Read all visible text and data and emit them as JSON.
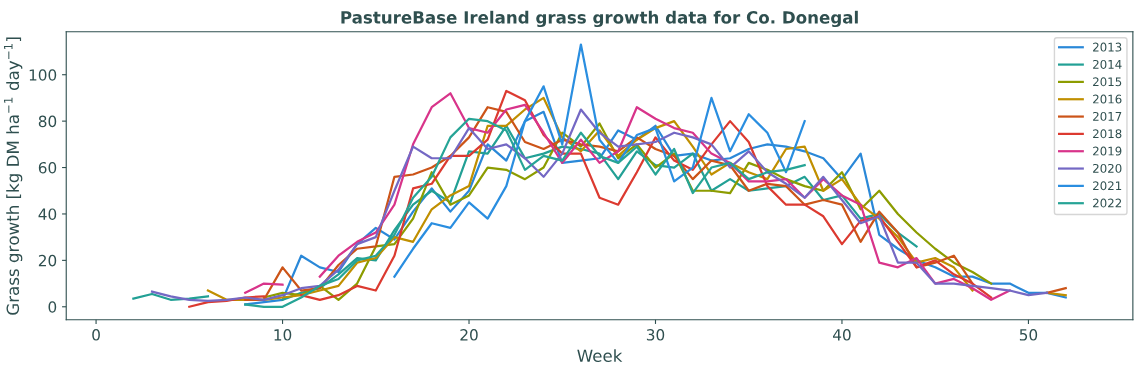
{
  "chart_data": {
    "type": "line",
    "title": "PastureBase Ireland grass growth data for Co. Donegal",
    "xlabel": "Week",
    "ylabel": "Grass growth [kg DM ha$^{−1}$ day$^{−1}$]",
    "xlim": [
      -1.6,
      55.6
    ],
    "ylim": [
      -5.6,
      118.5
    ],
    "xticks": [
      0,
      10,
      20,
      30,
      40,
      50
    ],
    "yticks": [
      0,
      20,
      40,
      60,
      80,
      100
    ],
    "grid": false,
    "legend": "top right",
    "line_style": "solid",
    "marker": "none",
    "series": [
      {
        "name": "2013",
        "color": "#2a88d8",
        "x": [
          8,
          9,
          10,
          11,
          12,
          13,
          14,
          15,
          16,
          17,
          18,
          19,
          20,
          21,
          22,
          23,
          24,
          25,
          26,
          27,
          28,
          29,
          30,
          31,
          32,
          33,
          34,
          35,
          36,
          37,
          38,
          39,
          40,
          41,
          42,
          43,
          44,
          45,
          46,
          47,
          48,
          49,
          50,
          51,
          52
        ],
        "values": [
          1,
          2,
          3,
          22,
          17,
          15,
          27,
          34,
          29,
          41,
          51,
          41,
          50,
          70,
          63,
          80,
          84,
          62,
          63,
          64,
          76,
          72,
          78,
          65,
          66,
          63,
          64,
          68,
          70,
          69,
          67,
          64,
          55,
          66,
          31,
          25,
          20,
          17,
          13,
          13,
          10,
          10,
          6,
          6,
          4
        ]
      },
      {
        "name": "2014",
        "color": "#22a095",
        "x": [
          2,
          3,
          4,
          5,
          6,
          7,
          8,
          9,
          10,
          11,
          12,
          13,
          14,
          15,
          16,
          17,
          18,
          19,
          20,
          21,
          22,
          23,
          24,
          25,
          26,
          27,
          28,
          29,
          30,
          31,
          32,
          33,
          34,
          35,
          36,
          37,
          38,
          39,
          40,
          41,
          42,
          43,
          44
        ],
        "values": [
          3.5,
          5.5,
          3,
          3.5,
          4.5,
          null,
          null,
          null,
          3,
          6,
          8,
          14,
          21,
          20,
          33,
          44,
          50,
          45,
          67,
          66,
          78,
          64,
          66,
          69,
          68,
          66,
          55,
          67,
          61,
          60,
          66,
          50,
          55,
          50,
          51,
          52,
          56,
          46,
          48,
          38,
          40,
          32,
          26
        ]
      },
      {
        "name": "2015",
        "color": "#8c9c00",
        "x": [
          9,
          10,
          11,
          12,
          13,
          14,
          15,
          16,
          17,
          18,
          19,
          20,
          21,
          22,
          23,
          24,
          25,
          26,
          27,
          28,
          29,
          30,
          31,
          32,
          33,
          34,
          35,
          36,
          37,
          38,
          39,
          40,
          41,
          42,
          43,
          44,
          45,
          46,
          47,
          48
        ],
        "values": [
          4,
          6,
          5,
          9,
          3,
          10,
          26,
          27,
          38,
          58,
          44,
          48,
          60,
          59,
          55,
          60,
          75,
          69,
          79,
          64,
          70,
          60,
          66,
          50,
          50,
          49,
          62,
          59,
          55,
          52,
          50,
          58,
          42,
          50,
          40,
          32,
          25,
          19,
          15,
          10
        ]
      },
      {
        "name": "2016",
        "color": "#c08f00",
        "x": [
          6,
          7,
          8,
          9,
          10,
          11,
          12,
          13,
          14,
          15,
          16,
          17,
          18,
          19,
          20,
          21,
          22,
          23,
          24,
          25,
          26,
          27,
          28,
          29,
          30,
          31,
          32,
          33,
          34,
          35,
          36,
          37,
          38,
          39,
          40,
          41,
          42,
          43,
          44,
          45,
          46,
          47,
          48,
          49,
          50,
          51,
          52
        ],
        "values": [
          7,
          3,
          3,
          3,
          4,
          5,
          7,
          9,
          19,
          21,
          30,
          28,
          42,
          48,
          52,
          78,
          78,
          85,
          90,
          73,
          67,
          76,
          65,
          72,
          77,
          80,
          69,
          57,
          62,
          58,
          55,
          68,
          69,
          50,
          55,
          44,
          38,
          30,
          19,
          21,
          17,
          7,
          null,
          null,
          null,
          6,
          5
        ]
      },
      {
        "name": "2017",
        "color": "#cc5418",
        "x": [
          8,
          9,
          10,
          11,
          12,
          13,
          14,
          15,
          16,
          17,
          18,
          19,
          20,
          21,
          22,
          23,
          24,
          25,
          26,
          27,
          28,
          29,
          30,
          31,
          32,
          33,
          34,
          35,
          36,
          37,
          38,
          39,
          40,
          41,
          42,
          43,
          44,
          45,
          46,
          47,
          48,
          49,
          50,
          51,
          52
        ],
        "values": [
          3,
          3,
          17,
          7,
          8,
          18,
          25,
          26,
          56,
          57,
          60,
          65,
          73,
          86,
          84,
          71,
          68,
          72,
          70,
          69,
          67,
          73,
          68,
          65,
          55,
          63,
          61,
          50,
          53,
          52,
          44,
          46,
          44,
          28,
          41,
          32,
          17,
          19,
          22,
          10,
          null,
          null,
          null,
          6,
          8
        ]
      },
      {
        "name": "2018",
        "color": "#dc3a30",
        "x": [
          5,
          6,
          7,
          8,
          9,
          10,
          11,
          12,
          13,
          14,
          15,
          16,
          17,
          18,
          19,
          20,
          21,
          22,
          23,
          24,
          25,
          26,
          27,
          28,
          29,
          30,
          31,
          32,
          33,
          34,
          35,
          36,
          37,
          38,
          39,
          40,
          41,
          42,
          43,
          44,
          45,
          46,
          47,
          48
        ],
        "values": [
          0,
          2,
          2.5,
          4,
          4.5,
          null,
          5,
          3,
          5,
          9,
          7,
          22,
          51,
          53,
          65,
          65,
          72,
          93,
          89,
          74,
          66,
          66,
          47,
          44,
          58,
          73,
          63,
          59,
          70,
          80,
          71,
          52,
          44,
          44,
          39,
          27,
          37,
          39,
          28,
          17,
          20,
          14,
          10,
          4
        ]
      },
      {
        "name": "2019",
        "color": "#d8348a",
        "x": [
          8,
          9,
          10,
          11,
          12,
          13,
          14,
          15,
          16,
          17,
          18,
          19,
          20,
          21,
          22,
          23,
          24,
          25,
          26,
          27,
          28,
          29,
          30,
          31,
          32,
          33,
          34,
          35,
          36,
          37,
          38,
          39,
          40,
          41,
          42,
          43,
          44,
          45,
          46,
          47,
          48,
          49
        ],
        "values": [
          6,
          10,
          9.5,
          null,
          13,
          22,
          28,
          32,
          44,
          70,
          86,
          92,
          77,
          75,
          85,
          87,
          75,
          62,
          72,
          62,
          67,
          86,
          81,
          77,
          75,
          66,
          62,
          54,
          54,
          55,
          47,
          55,
          48,
          44,
          19,
          17,
          21,
          10,
          12,
          8,
          3,
          7
        ]
      },
      {
        "name": "2020",
        "color": "#7468c4",
        "x": [
          3,
          4,
          5,
          6,
          7,
          8,
          9,
          10,
          11,
          12,
          13,
          14,
          15,
          16,
          17,
          18,
          19,
          20,
          21,
          22,
          23,
          24,
          25,
          26,
          27,
          28,
          29,
          30,
          31,
          32,
          33,
          34,
          35,
          36,
          37,
          38,
          39,
          40,
          41,
          42,
          43,
          44,
          45,
          46,
          47,
          48,
          49,
          50,
          51
        ],
        "values": [
          6.5,
          4.5,
          3,
          2.5,
          3,
          4,
          3,
          5,
          8,
          9,
          16,
          27,
          30,
          50,
          69,
          64,
          64,
          77,
          68,
          70,
          64,
          56,
          66,
          85,
          75,
          69,
          70,
          71,
          75,
          73,
          70,
          60,
          67,
          58,
          53,
          47,
          56,
          46,
          36,
          39,
          19,
          19,
          10,
          10,
          9,
          8,
          7,
          5,
          6
        ]
      },
      {
        "name": "2021",
        "color": "#2a8ee0",
        "x": [
          16,
          17,
          18,
          19,
          20,
          21,
          22,
          23,
          24,
          25,
          26,
          27,
          28,
          29,
          30,
          31,
          32,
          33,
          34,
          35,
          36,
          37,
          38
        ],
        "values": [
          13,
          25,
          36,
          34,
          45,
          38,
          52,
          80,
          95,
          70,
          113,
          72,
          62,
          74,
          77,
          54,
          60,
          90,
          67,
          83,
          75,
          58,
          80
        ]
      },
      {
        "name": "2022",
        "color": "#26a496",
        "x": [
          8,
          9,
          10,
          11,
          12,
          13,
          14,
          15,
          16,
          17,
          18,
          19,
          20,
          21,
          22,
          23,
          24,
          25,
          26,
          27,
          28,
          29,
          30,
          31,
          32,
          33,
          34,
          35,
          36,
          37,
          38
        ],
        "values": [
          1,
          0,
          0,
          4,
          9,
          12,
          20,
          22,
          31,
          47,
          56,
          73,
          81,
          80,
          76,
          59,
          65,
          63,
          75,
          65,
          62,
          69,
          57,
          68,
          49,
          60,
          62,
          55,
          58,
          59,
          61
        ]
      }
    ]
  }
}
